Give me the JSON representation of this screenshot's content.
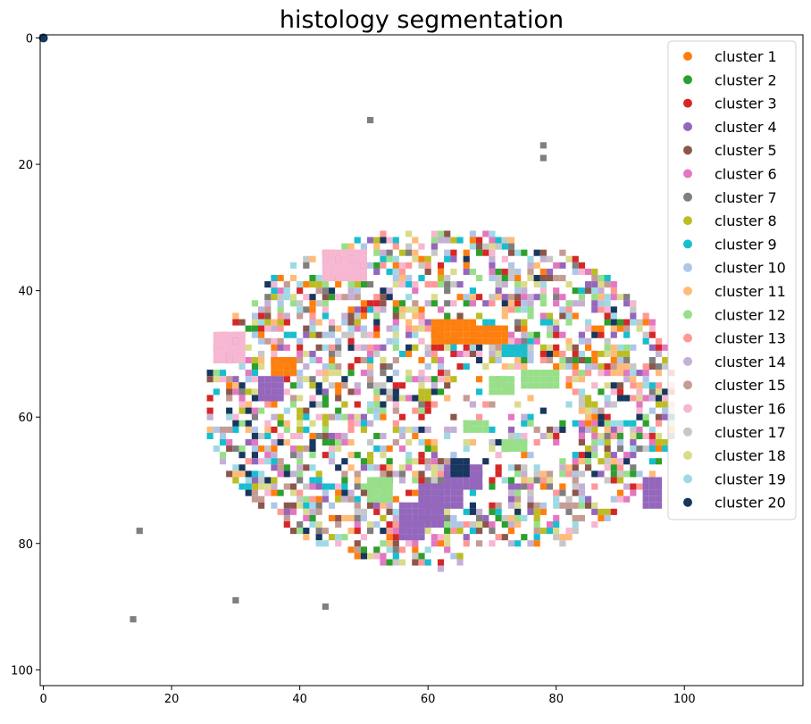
{
  "chart_data": {
    "type": "heatmap",
    "title": "histology segmentation",
    "xlabel": "",
    "ylabel": "",
    "xlim": [
      -0.5,
      118.5
    ],
    "ylim": [
      102.5,
      -0.5
    ],
    "x_ticks": [
      0,
      20,
      40,
      60,
      80,
      100
    ],
    "y_ticks": [
      0,
      20,
      40,
      60,
      80,
      100
    ],
    "grid": false,
    "legend_position": "top-right",
    "series": [
      {
        "name": "cluster 1",
        "color": "#ff7f0e"
      },
      {
        "name": "cluster 2",
        "color": "#2ca02c"
      },
      {
        "name": "cluster 3",
        "color": "#d62728"
      },
      {
        "name": "cluster 4",
        "color": "#9467bd"
      },
      {
        "name": "cluster 5",
        "color": "#8c564b"
      },
      {
        "name": "cluster 6",
        "color": "#e377c2"
      },
      {
        "name": "cluster 7",
        "color": "#7f7f7f"
      },
      {
        "name": "cluster 8",
        "color": "#bcbd22"
      },
      {
        "name": "cluster 9",
        "color": "#17becf"
      },
      {
        "name": "cluster 10",
        "color": "#aec7e8"
      },
      {
        "name": "cluster 11",
        "color": "#ffbb78"
      },
      {
        "name": "cluster 12",
        "color": "#98df8a"
      },
      {
        "name": "cluster 13",
        "color": "#ff9896"
      },
      {
        "name": "cluster 14",
        "color": "#c5b0d5"
      },
      {
        "name": "cluster 15",
        "color": "#c49c94"
      },
      {
        "name": "cluster 16",
        "color": "#f7b6d2"
      },
      {
        "name": "cluster 17",
        "color": "#c7c7c7"
      },
      {
        "name": "cluster 18",
        "color": "#dbdb8d"
      },
      {
        "name": "cluster 19",
        "color": "#9edae5"
      },
      {
        "name": "cluster 20",
        "color": "#17375e"
      }
    ],
    "points": [
      {
        "x": 0,
        "y": 0,
        "cluster": 20
      },
      {
        "x": 51,
        "y": 13,
        "cluster": 7
      },
      {
        "x": 78,
        "y": 17,
        "cluster": 7
      },
      {
        "x": 78,
        "y": 19,
        "cluster": 7
      },
      {
        "x": 15,
        "y": 78,
        "cluster": 7
      },
      {
        "x": 30,
        "y": 89,
        "cluster": 7
      },
      {
        "x": 44,
        "y": 90,
        "cluster": 7
      },
      {
        "x": 14,
        "y": 92,
        "cluster": 7
      }
    ],
    "blocks": [
      {
        "cluster": 1,
        "x": [
          61,
          67
        ],
        "y": [
          45,
          48
        ]
      },
      {
        "cluster": 1,
        "x": [
          67,
          72
        ],
        "y": [
          46,
          48
        ]
      },
      {
        "cluster": 1,
        "x": [
          36,
          39
        ],
        "y": [
          51,
          53
        ]
      },
      {
        "cluster": 12,
        "x": [
          75,
          80
        ],
        "y": [
          53,
          55
        ]
      },
      {
        "cluster": 12,
        "x": [
          70,
          73
        ],
        "y": [
          54,
          56
        ]
      },
      {
        "cluster": 12,
        "x": [
          51,
          54
        ],
        "y": [
          70,
          73
        ]
      },
      {
        "cluster": 4,
        "x": [
          34,
          37
        ],
        "y": [
          54,
          57
        ]
      },
      {
        "cluster": 4,
        "x": [
          63,
          68
        ],
        "y": [
          68,
          71
        ]
      },
      {
        "cluster": 4,
        "x": [
          59,
          65
        ],
        "y": [
          71,
          74
        ]
      },
      {
        "cluster": 4,
        "x": [
          56,
          62
        ],
        "y": [
          74,
          77
        ]
      },
      {
        "cluster": 4,
        "x": [
          56,
          59
        ],
        "y": [
          77,
          79
        ]
      },
      {
        "cluster": 4,
        "x": [
          94,
          96
        ],
        "y": [
          70,
          74
        ]
      },
      {
        "cluster": 16,
        "x": [
          44,
          50
        ],
        "y": [
          34,
          38
        ]
      },
      {
        "cluster": 16,
        "x": [
          27,
          31
        ],
        "y": [
          47,
          51
        ]
      },
      {
        "cluster": 20,
        "x": [
          64,
          66
        ],
        "y": [
          67,
          69
        ]
      },
      {
        "cluster": 9,
        "x": [
          72,
          75
        ],
        "y": [
          49,
          50
        ]
      },
      {
        "cluster": 12,
        "x": [
          66,
          69
        ],
        "y": [
          61,
          62
        ]
      },
      {
        "cluster": 12,
        "x": [
          72,
          75
        ],
        "y": [
          64,
          65
        ]
      }
    ],
    "scatter": {
      "x_range": [
        25,
        99
      ],
      "y_range": [
        29,
        84
      ],
      "density": 0.55
    }
  }
}
